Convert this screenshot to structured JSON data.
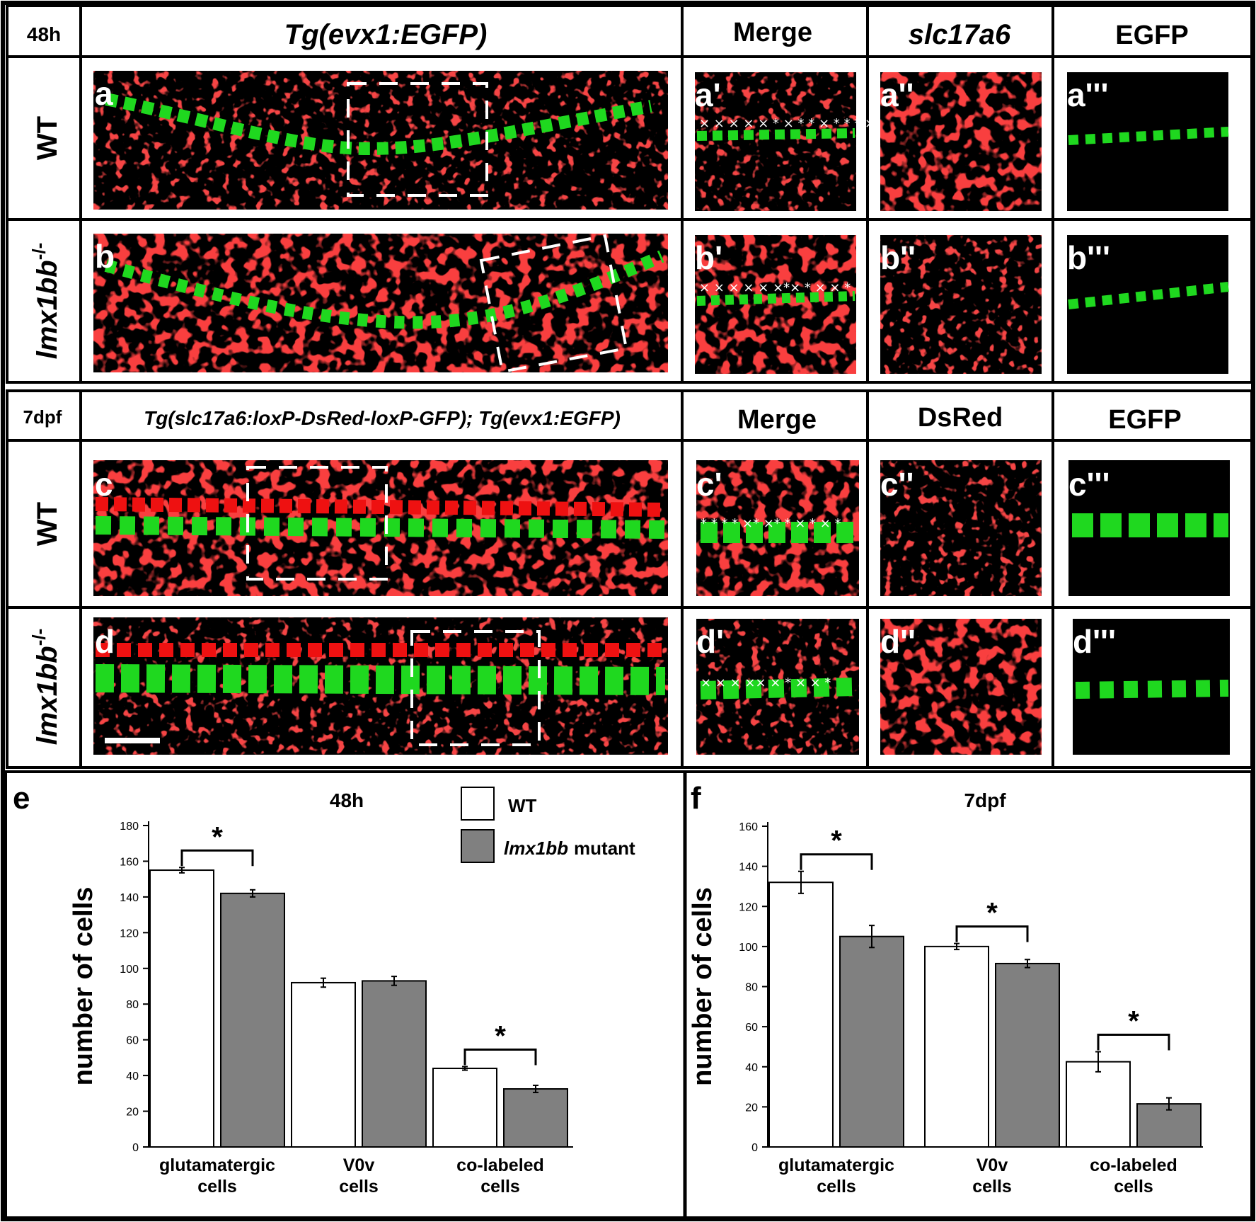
{
  "figure": {
    "row_block_1": {
      "time": "48h",
      "title": "Tg(evx1:EGFP)",
      "col_headers": [
        "Merge",
        "slc17a6",
        "EGFP"
      ],
      "genotypes": [
        "WT",
        "lmx1bb",
        "-/-"
      ],
      "panel_labels": [
        "a",
        "a'",
        "a''",
        "a'''",
        "b",
        "b'",
        "b''",
        "b'''"
      ]
    },
    "row_block_2": {
      "time": "7dpf",
      "title": "Tg(slc17a6:loxP-DsRed-loxP-GFP); Tg(evx1:EGFP)",
      "col_headers": [
        "Merge",
        "DsRed",
        "EGFP"
      ],
      "genotypes": [
        "WT",
        "lmx1bb",
        "-/-"
      ],
      "panel_labels": [
        "c",
        "c'",
        "c''",
        "c'''",
        "d",
        "d'",
        "d''",
        "d'''"
      ]
    },
    "legend": {
      "wt": "WT",
      "mutant_italic": "lmx1bb",
      "mutant_suffix": "mutant"
    },
    "colors": {
      "wt_bar": "#ffffff",
      "mutant_bar": "#808080",
      "egfp": "#22e622",
      "red": "#ee1111",
      "background": "#000000"
    }
  },
  "chart_data": [
    {
      "type": "bar",
      "panel": "e",
      "title": "48h",
      "ylabel": "number of cells",
      "xlabel": "",
      "categories": [
        [
          "glutamatergic",
          "cells"
        ],
        [
          "V0v",
          "cells"
        ],
        [
          "co-labeled",
          "cells"
        ]
      ],
      "series": [
        {
          "name": "WT",
          "values": [
            155,
            92,
            44
          ],
          "errors": [
            1.5,
            2.5,
            1
          ]
        },
        {
          "name": "lmx1bb mutant",
          "values": [
            142,
            93,
            32.5
          ],
          "errors": [
            2,
            2.5,
            2
          ]
        }
      ],
      "ylim": [
        0,
        180
      ],
      "yticks": [
        0,
        20,
        40,
        60,
        80,
        100,
        120,
        140,
        160,
        180
      ],
      "significance": [
        {
          "category": 0,
          "label": "*"
        },
        {
          "category": 2,
          "label": "*"
        }
      ],
      "legend_position": "top-right",
      "grid": false
    },
    {
      "type": "bar",
      "panel": "f",
      "title": "7dpf",
      "ylabel": "number of cells",
      "xlabel": "",
      "categories": [
        [
          "glutamatergic",
          "cells"
        ],
        [
          "V0v",
          "cells"
        ],
        [
          "co-labeled",
          "cells"
        ]
      ],
      "series": [
        {
          "name": "WT",
          "values": [
            132,
            100,
            42.5
          ],
          "errors": [
            5.5,
            1.5,
            5
          ]
        },
        {
          "name": "lmx1bb mutant",
          "values": [
            105,
            91.5,
            21.5
          ],
          "errors": [
            5.5,
            2,
            3
          ]
        }
      ],
      "ylim": [
        0,
        160
      ],
      "yticks": [
        0,
        20,
        40,
        60,
        80,
        100,
        120,
        140,
        160
      ],
      "significance": [
        {
          "category": 0,
          "label": "*"
        },
        {
          "category": 1,
          "label": "*"
        },
        {
          "category": 2,
          "label": "*"
        }
      ],
      "grid": false
    }
  ]
}
